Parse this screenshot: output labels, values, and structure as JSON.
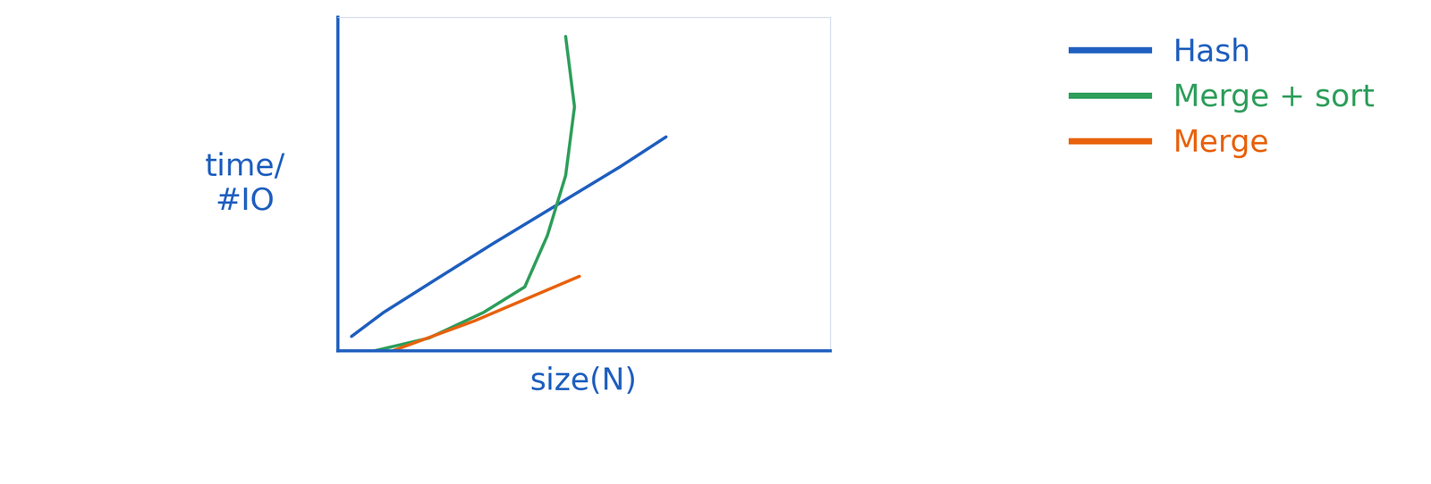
{
  "chart_data": {
    "type": "line",
    "x_label": "size(N)",
    "y_label": "time/\n#IO",
    "xlim": [
      0,
      100
    ],
    "ylim": [
      0,
      120
    ],
    "xticks": [],
    "yticks": [],
    "tick_labels": false,
    "legend": "upper right",
    "series": [
      {
        "name": "Hash",
        "color": "#1f5fbf",
        "x": [
          2.8,
          9.3,
          20.4,
          31.5,
          44.4,
          57.4,
          66.7
        ],
        "values": [
          5.2,
          13.8,
          26.2,
          38.5,
          52.3,
          66.2,
          76.9
        ]
      },
      {
        "name": "Merge + sort",
        "color": "#2e9e5b",
        "x": [
          7.4,
          18.5,
          29.6,
          38.0,
          42.6,
          46.3,
          48.1,
          46.3
        ],
        "values": [
          0.0,
          4.6,
          13.8,
          23.0,
          41.5,
          63.0,
          87.7,
          113.0
        ]
      },
      {
        "name": "Merge",
        "color": "#e8620c",
        "x": [
          11.1,
          27.8,
          49.1
        ],
        "values": [
          0.0,
          10.8,
          26.8
        ]
      }
    ]
  }
}
